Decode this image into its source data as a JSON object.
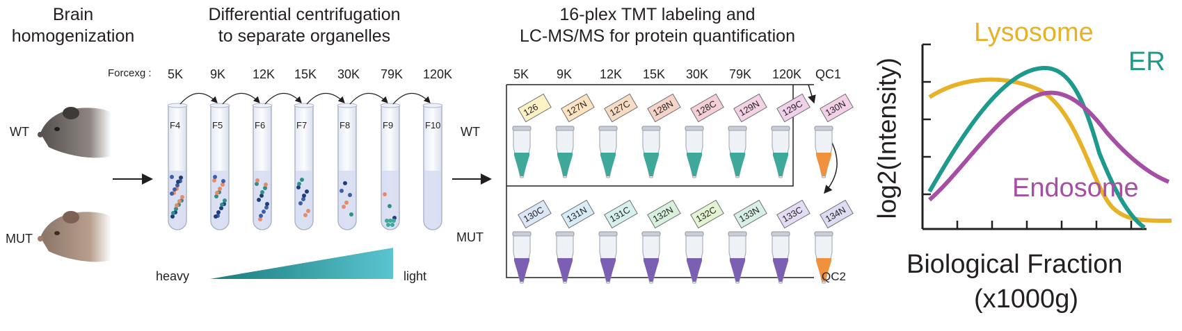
{
  "step1": {
    "title_line1": "Brain",
    "title_line2": "homogenization",
    "genotypes": [
      "WT",
      "MUT"
    ]
  },
  "step2": {
    "title_line1": "Differential centrifugation",
    "title_line2": "to separate organelles",
    "force_label": "Forcexg :",
    "forces": [
      "5K",
      "9K",
      "12K",
      "15K",
      "30K",
      "79K",
      "120K"
    ],
    "fractions": [
      "F4",
      "F5",
      "F6",
      "F7",
      "F8",
      "F9",
      "F10"
    ],
    "gradient_left": "heavy",
    "gradient_right": "light"
  },
  "step3": {
    "title_line1": "16-plex TMT labeling and",
    "title_line2": "LC-MS/MS for protein quantification",
    "columns": [
      "5K",
      "9K",
      "12K",
      "15K",
      "30K",
      "79K",
      "120K",
      "QC1"
    ],
    "row_labels": [
      "WT",
      "MUT"
    ],
    "wt_tags": [
      "126",
      "127N",
      "127C",
      "128N",
      "128C",
      "129N",
      "129C",
      "130N"
    ],
    "mut_tags": [
      "130C",
      "131N",
      "131C",
      "132N",
      "132C",
      "133N",
      "133C",
      "134N"
    ],
    "qc2_label": "QC2",
    "wt_tag_colors": [
      "#fbf3c4",
      "#fde3bf",
      "#f7dcc4",
      "#f6d3c8",
      "#f5cfd6",
      "#f3d2e6",
      "#f1d1ea",
      "#f4d0e6"
    ],
    "mut_tag_colors": [
      "#dce7f6",
      "#d8ecf6",
      "#d6f0ee",
      "#d8f1dc",
      "#e3f4d2",
      "#d8efe6",
      "#e4dcf2",
      "#dcdcf2"
    ]
  },
  "plot": {
    "ylabel": "log2(Intensity)",
    "xlabel_line1": "Biological Fraction",
    "xlabel_line2": "(x1000g)",
    "series": [
      {
        "name": "Lysosome",
        "color": "#e8b226"
      },
      {
        "name": "ER",
        "color": "#1d9a8c"
      },
      {
        "name": "Endosome",
        "color": "#a64ea4"
      }
    ]
  },
  "colors": {
    "teal_liquid": "#3ea89a",
    "purple_liquid": "#7b5fb3",
    "orange_liquid": "#f0913e",
    "gradient_dark": "#1a7c7d",
    "gradient_light": "#5ac4cf"
  }
}
